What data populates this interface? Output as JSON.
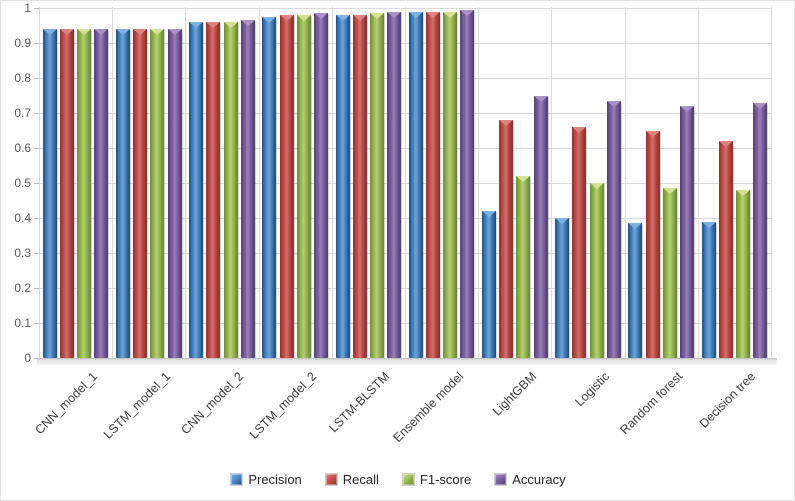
{
  "chart_data": {
    "type": "bar",
    "title": "",
    "xlabel": "",
    "ylabel": "",
    "ylim": [
      0,
      1
    ],
    "ytick_labels": [
      "1",
      "0.9",
      "0.8",
      "0.7",
      "0.6",
      "0.5",
      "0.4",
      "0.3",
      "0.2",
      "0.1",
      "0"
    ],
    "ytick_values": [
      1,
      0.9,
      0.8,
      0.7,
      0.6,
      0.5,
      0.4,
      0.3,
      0.2,
      0.1,
      0
    ],
    "grid": true,
    "legend_position": "bottom",
    "categories": [
      "CNN_model_1",
      "LSTM_model_1",
      "CNN_model_2",
      "LSTM_model_2",
      "LSTM-BLSTM",
      "Ensemble model",
      "LightGBM",
      "Logistic",
      "Random forest",
      "Decision tree"
    ],
    "series": [
      {
        "name": "Precision",
        "color": "#4F81BD",
        "values": [
          0.94,
          0.94,
          0.96,
          0.975,
          0.98,
          0.99,
          0.42,
          0.4,
          0.385,
          0.39
        ]
      },
      {
        "name": "Recall",
        "color": "#C0504D",
        "values": [
          0.94,
          0.94,
          0.96,
          0.98,
          0.98,
          0.99,
          0.68,
          0.66,
          0.65,
          0.62
        ]
      },
      {
        "name": "F1-score",
        "color": "#9BBB59",
        "values": [
          0.94,
          0.94,
          0.96,
          0.98,
          0.985,
          0.99,
          0.52,
          0.5,
          0.485,
          0.48
        ]
      },
      {
        "name": "Accuracy",
        "color": "#8064A2",
        "values": [
          0.94,
          0.94,
          0.965,
          0.985,
          0.99,
          0.995,
          0.75,
          0.735,
          0.72,
          0.73
        ]
      }
    ]
  }
}
